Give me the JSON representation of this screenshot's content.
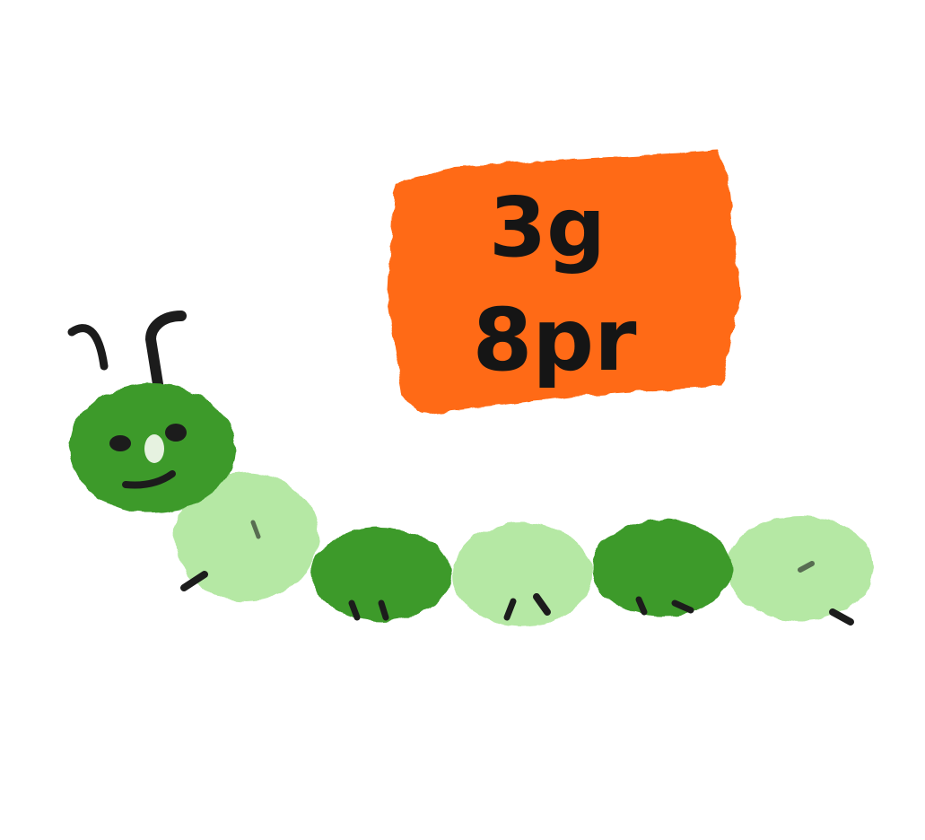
{
  "sign": {
    "line1": "3g",
    "line2": "8pr",
    "color": "#ff6a12"
  },
  "caterpillar": {
    "head_color": "#3c9a2a",
    "dark_segment_color": "#3c9a2a",
    "light_segment_color": "#b5e8a4",
    "segment_count": 6,
    "ink_color": "#1c1c1c"
  }
}
